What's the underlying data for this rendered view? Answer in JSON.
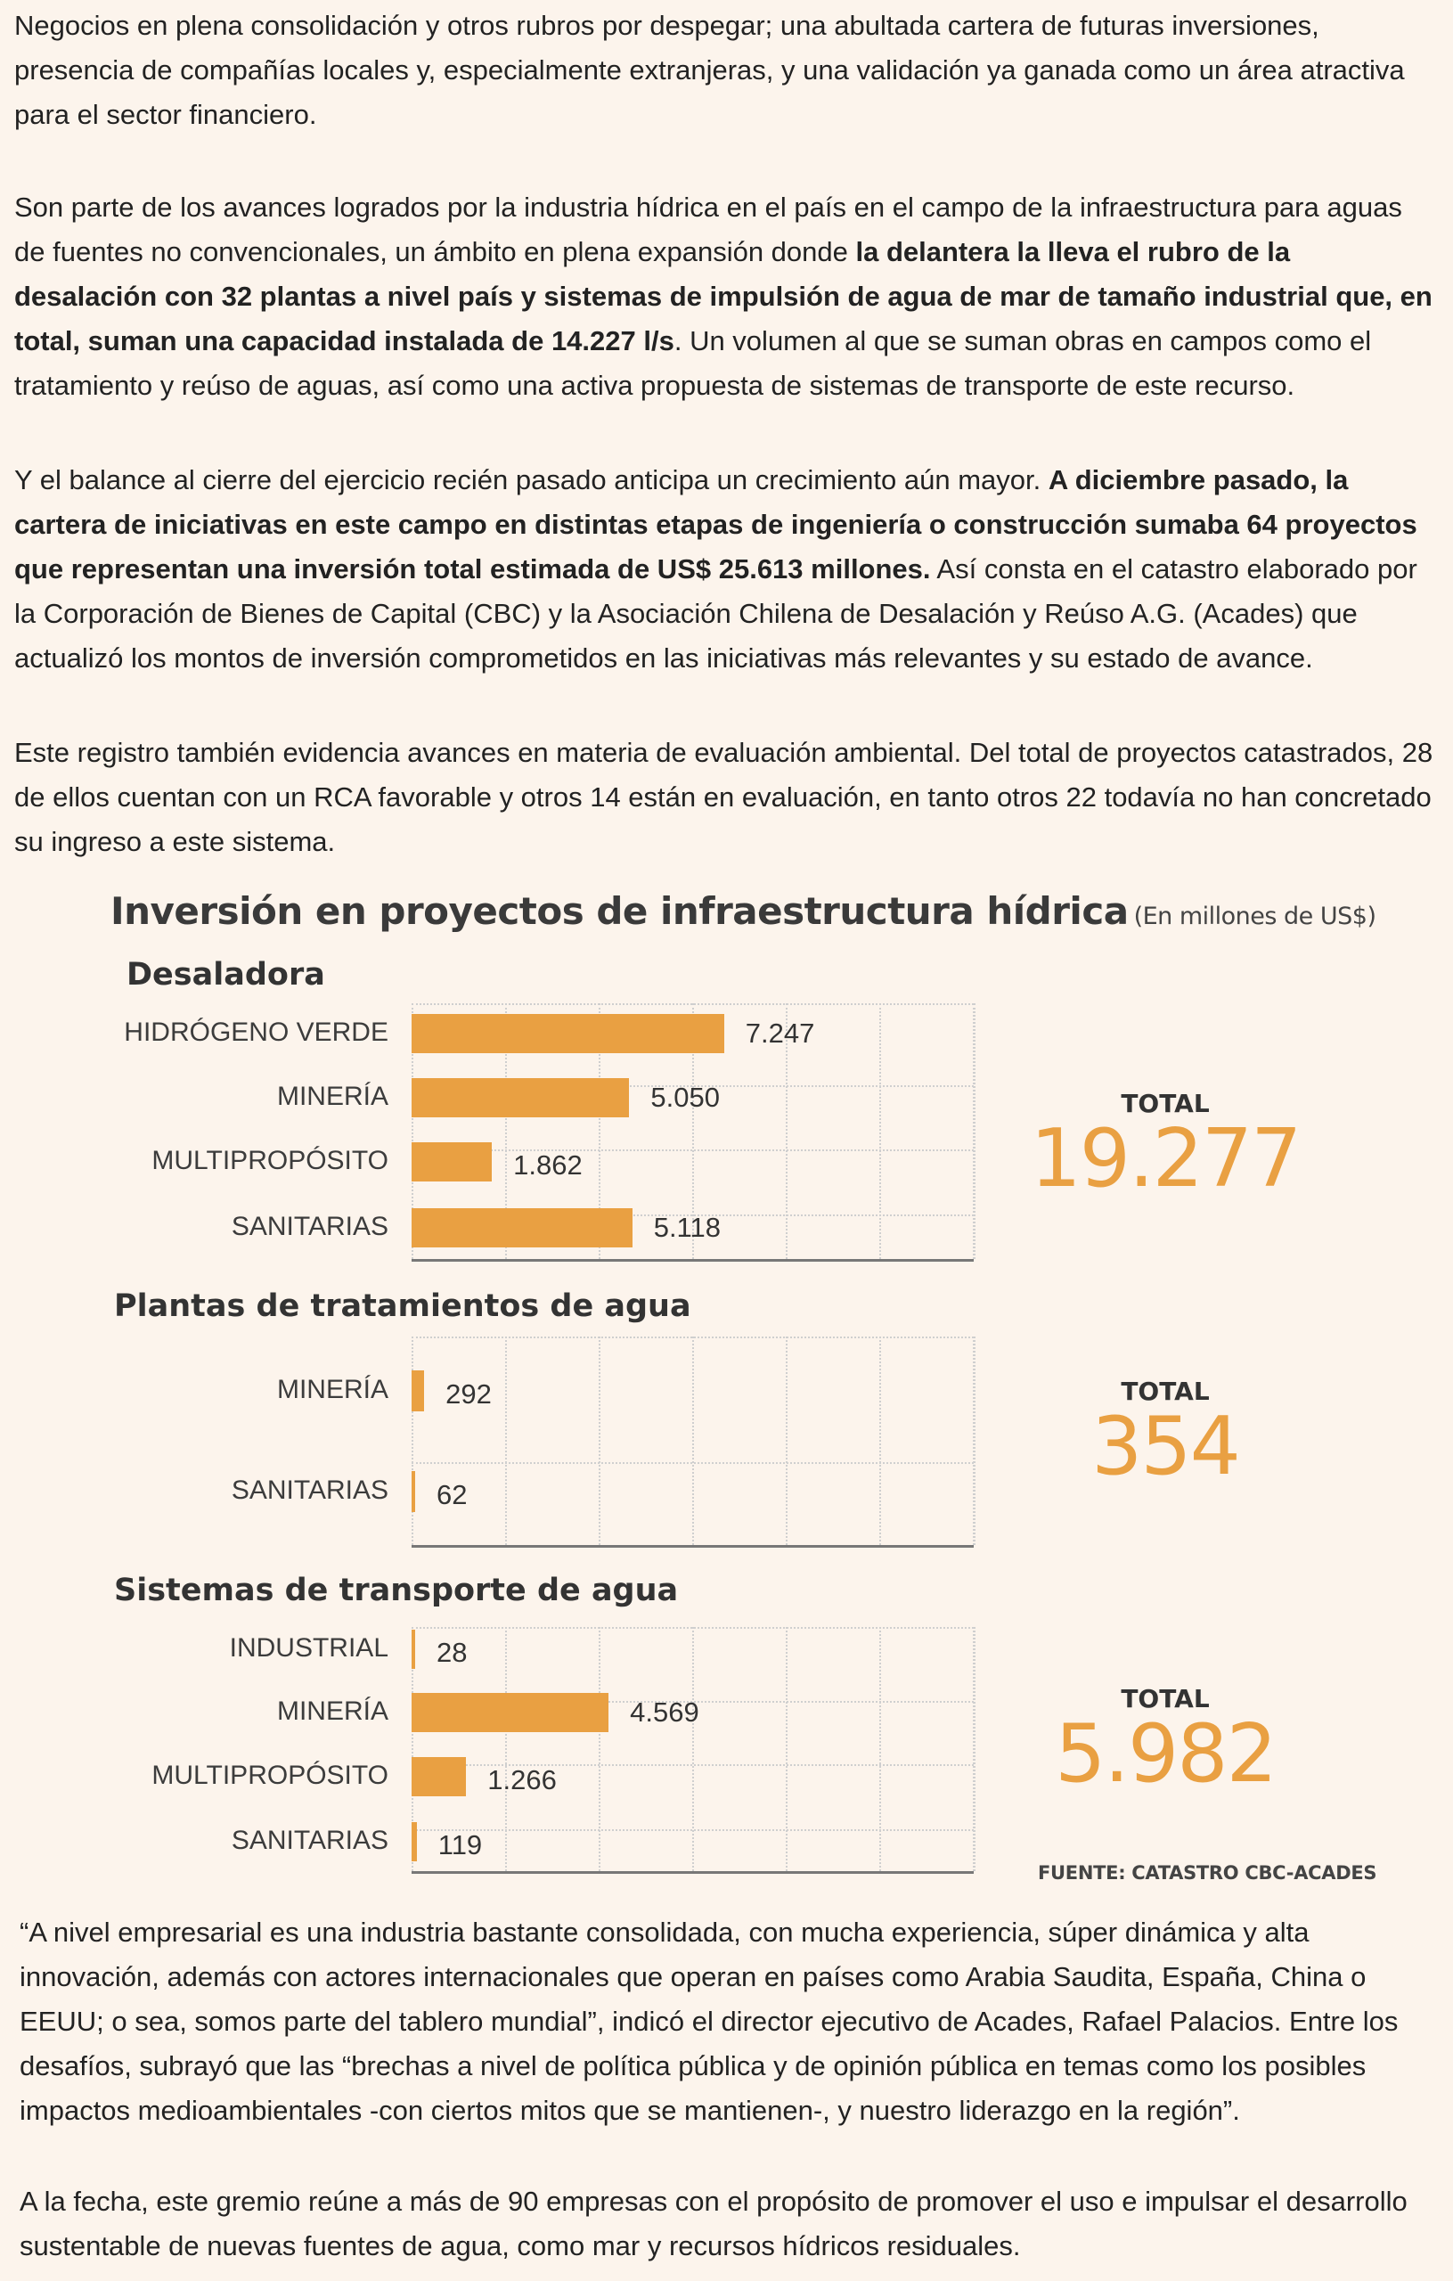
{
  "article": {
    "p1": "Negocios en plena consolidación y otros rubros por despegar; una abultada cartera de futuras inversiones, presencia de compañías locales y, especialmente extranjeras, y una validación ya ganada como un área atractiva para el sector financiero.",
    "p2_a": "Son parte de los avances logrados por la industria hídrica en el país en el campo de la infraestructura para aguas de fuentes no convencionales, un ámbito en plena expansión donde ",
    "p2_b": "la delantera la lleva el rubro de la desalación con 32 plantas a nivel país y sistemas de impulsión de agua de mar de tamaño industrial que, en total, suman una capacidad instalada de 14.227 l/s",
    "p2_c": ". Un volumen al que se suman obras en campos como el tratamiento y reúso de aguas, así como una activa propuesta de sistemas de transporte de este recurso.",
    "p3_a": "Y el balance al cierre del ejercicio recién pasado anticipa un crecimiento aún mayor. ",
    "p3_b": "A diciembre pasado, la cartera de iniciativas en este campo en distintas etapas de ingeniería o construcción sumaba 64 proyectos que representan una inversión total estimada de US$ 25.613 millones.",
    "p3_c": " Así consta en el catastro elaborado por la Corporación de Bienes de Capital (CBC) y la Asociación Chilena de Desalación y Reúso A.G. (Acades) que actualizó los montos de inversión comprometidos en las iniciativas más relevantes y su estado de avance.",
    "p4": "Este registro también evidencia avances en materia de evaluación ambiental. Del total de proyectos catastrados, 28 de ellos cuentan con un RCA favorable y otros 14 están en evaluación, en tanto otros 22 todavía no han concretado su ingreso a este sistema.",
    "p5": "“A nivel empresarial es una industria bastante consolidada, con mucha experiencia, súper dinámica y alta innovación, además con actores internacionales que operan en países como Arabia Saudita, España, China o EEUU; o sea, somos parte del tablero mundial”, indicó el director ejecutivo de Acades, Rafael Palacios.  Entre los desafíos, subrayó que las “brechas a nivel de política pública y de opinión pública en temas como los posibles impactos medioambientales -con ciertos mitos que se mantienen-, y nuestro liderazgo en la región”.",
    "p6": "A la fecha, este gremio reúne a más de 90 empresas con el propósito de promover el uso e impulsar el desarrollo sustentable de nuevas fuentes de agua, como mar y recursos hídricos residuales."
  },
  "chart_data": {
    "type": "bar",
    "orientation": "horizontal",
    "title": "Inversión en proyectos de infraestructura hídrica",
    "unit": "(En millones de US$)",
    "source": "FUENTE: CATASTRO CBC-ACADES",
    "total_label": "TOTAL",
    "bar_color": "#e9a042",
    "xlim": [
      0,
      12000
    ],
    "groups": [
      {
        "title": "Desaladora",
        "categories": [
          "HIDRÓGENO VERDE",
          "MINERÍA",
          "MULTIPROPÓSITO",
          "SANITARIAS"
        ],
        "values": [
          7247,
          5050,
          1862,
          5118
        ],
        "value_labels": [
          "7.247",
          "5.050",
          "1.862",
          "5.118"
        ],
        "total": "19.277"
      },
      {
        "title": "Plantas de tratamientos de agua",
        "categories": [
          "MINERÍA",
          "SANITARIAS"
        ],
        "values": [
          292,
          62
        ],
        "value_labels": [
          "292",
          "62"
        ],
        "total": "354"
      },
      {
        "title": "Sistemas de transporte de agua",
        "categories": [
          "INDUSTRIAL",
          "MINERÍA",
          "MULTIPROPÓSITO",
          "SANITARIAS"
        ],
        "values": [
          28,
          4569,
          1266,
          119
        ],
        "value_labels": [
          "28",
          "4.569",
          "1.266",
          "119"
        ],
        "total": "5.982"
      }
    ]
  }
}
